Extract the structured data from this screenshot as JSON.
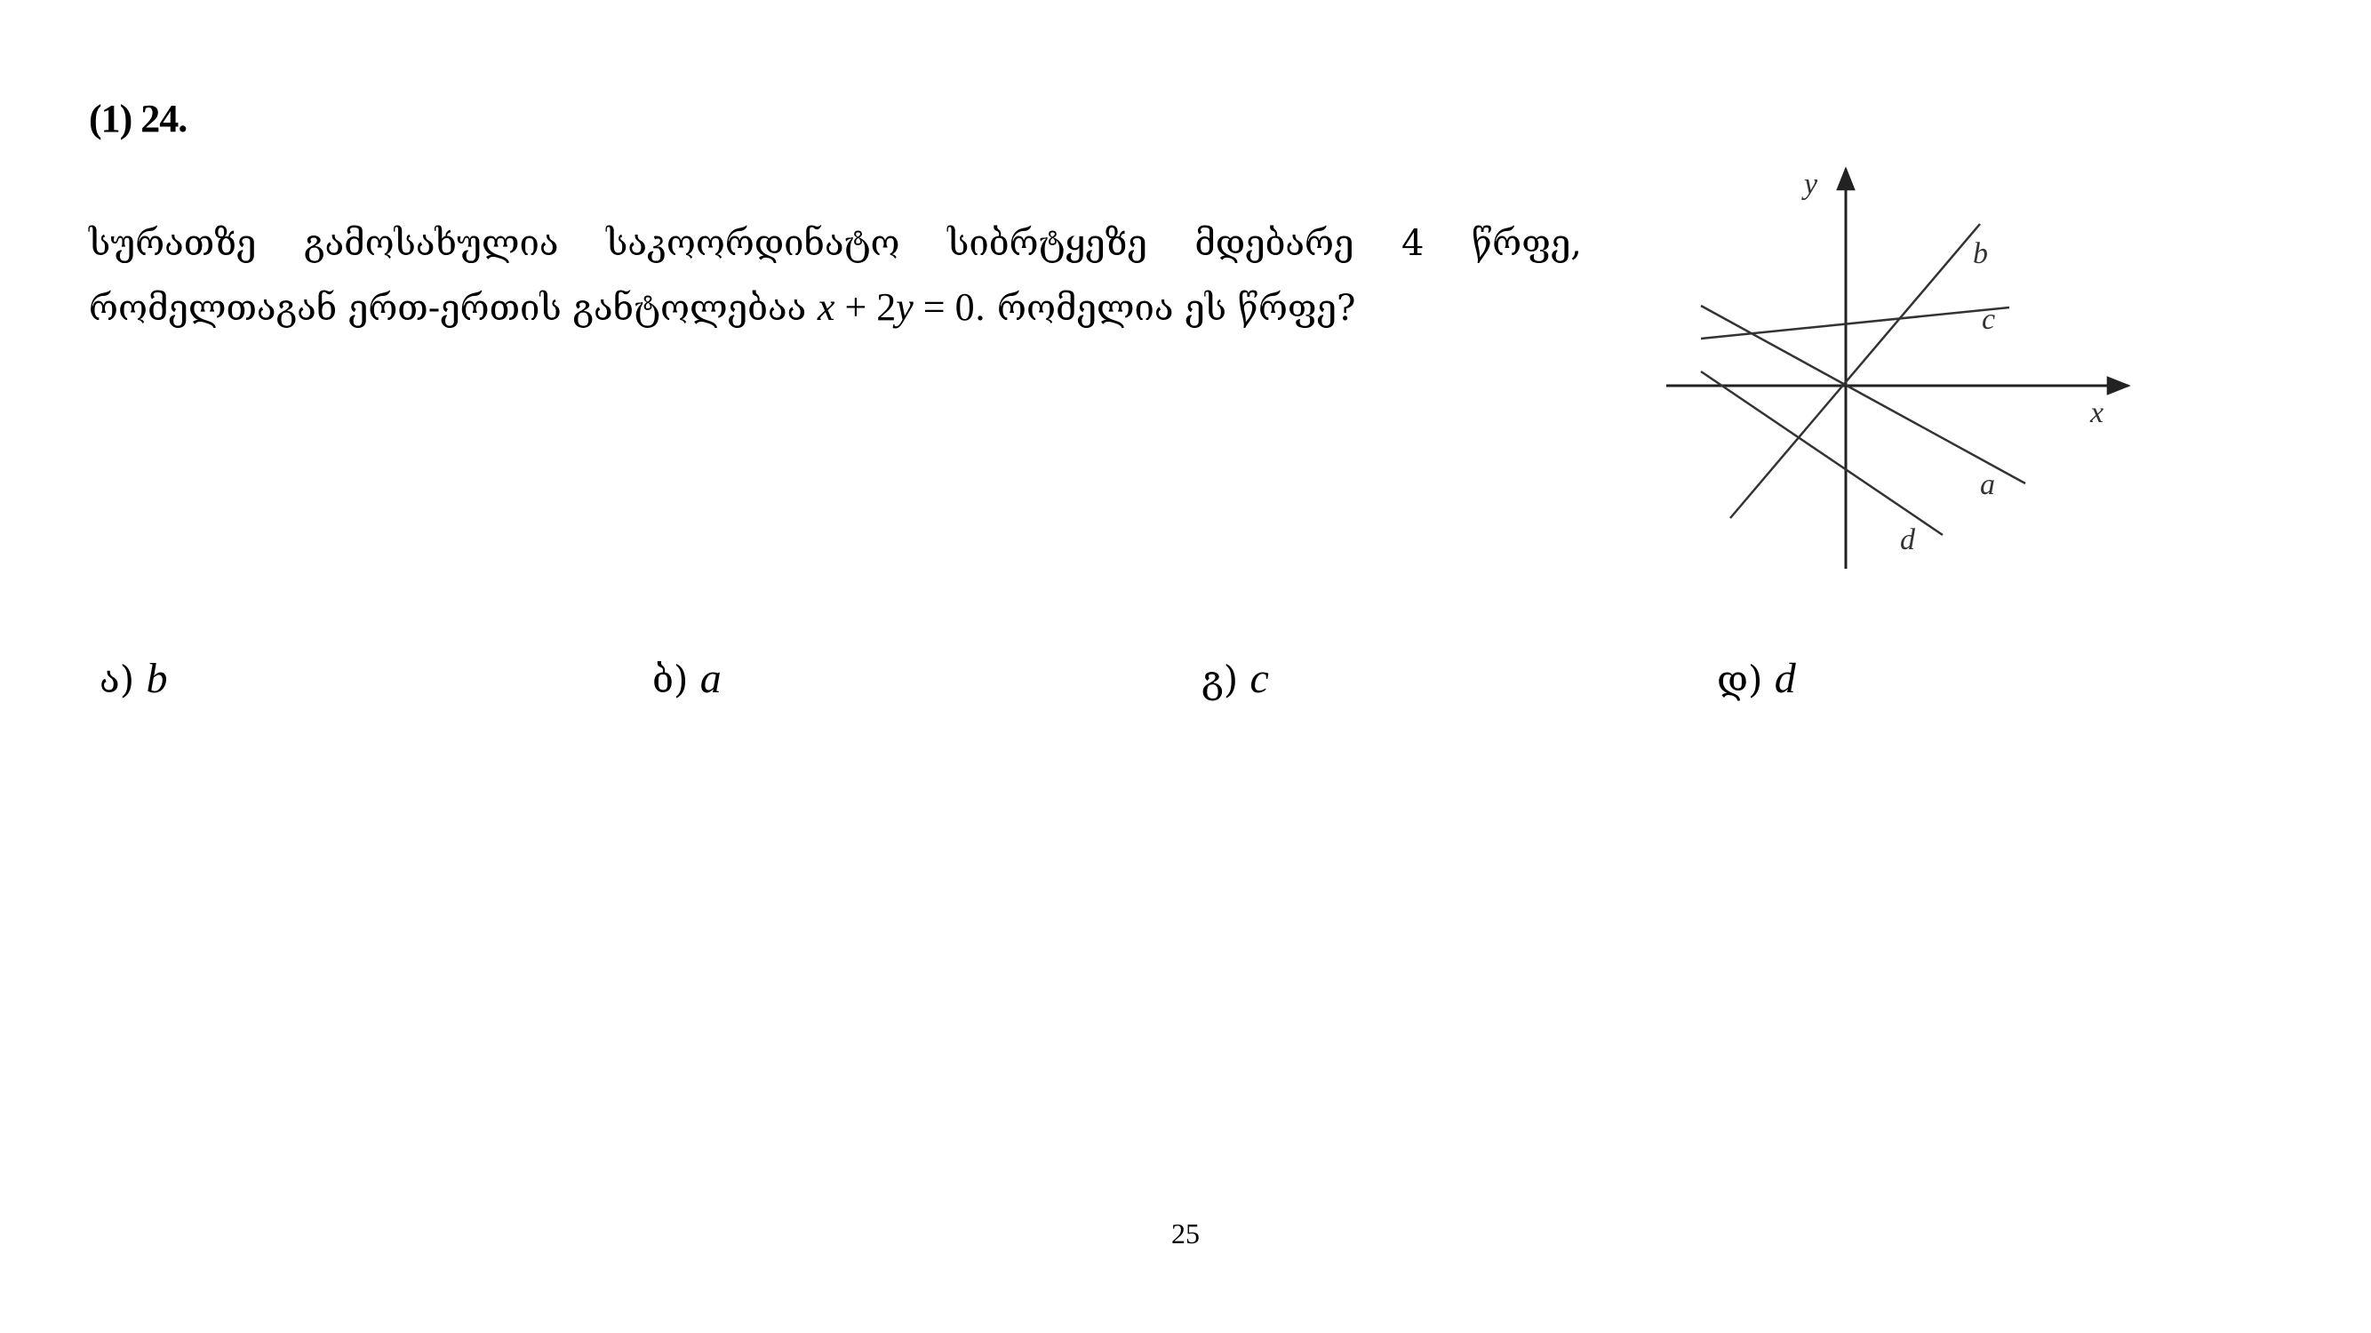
{
  "question": {
    "number": "(1) 24.",
    "stem_line1": "სურათზე გამოსახულია საკოორდინატო სიბრტყეზე მდებარე 4 წრფე,",
    "stem_line2_before": "რომელთაგან ერთ-ერთის განტოლებაა",
    "equation_x": "x",
    "equation_plus": " + 2",
    "equation_y": "y",
    "equation_rest": " = 0",
    "stem_line2_after": ". რომელია ეს წრფე?"
  },
  "figure": {
    "axis_x_label": "x",
    "axis_y_label": "y",
    "line_labels": [
      "b",
      "c",
      "a",
      "d"
    ]
  },
  "options": [
    {
      "marker": "ა)",
      "value": "b"
    },
    {
      "marker": "ბ)",
      "value": "a"
    },
    {
      "marker": "გ)",
      "value": "c"
    },
    {
      "marker": "დ)",
      "value": "d"
    }
  ],
  "page_number": "25"
}
